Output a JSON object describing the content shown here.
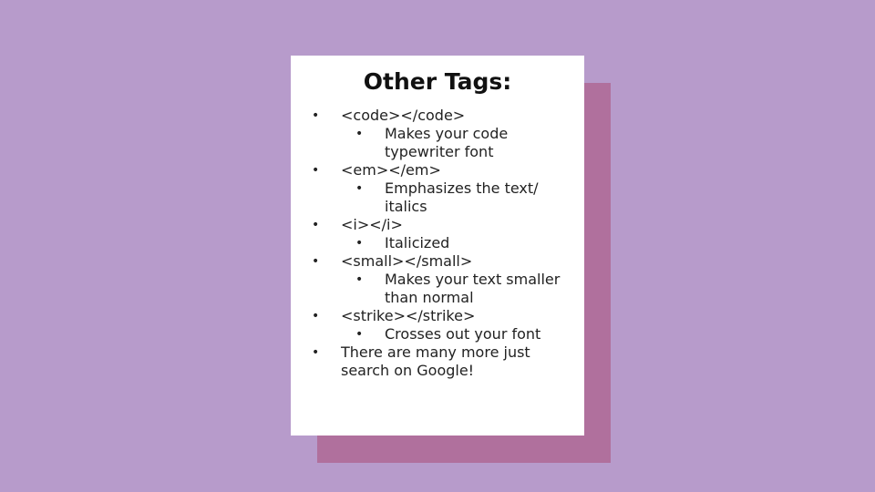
{
  "slide": {
    "title": "Other Tags:",
    "items": [
      {
        "text": [
          "<code></code>"
        ],
        "sub": [
          {
            "text": [
              "Makes your code",
              "typewriter font"
            ]
          }
        ]
      },
      {
        "text": [
          "<em></em>"
        ],
        "sub": [
          {
            "text": [
              "Emphasizes the text/",
              "italics"
            ]
          }
        ]
      },
      {
        "text": [
          "<i></i>"
        ],
        "sub": [
          {
            "text": [
              "Italicized"
            ]
          }
        ]
      },
      {
        "text": [
          "<small></small>"
        ],
        "sub": [
          {
            "text": [
              "Makes your text smaller",
              "than normal"
            ]
          }
        ]
      },
      {
        "text": [
          "<strike></strike>"
        ],
        "sub": [
          {
            "text": [
              "Crosses out your font"
            ]
          }
        ]
      },
      {
        "text": [
          "There are many more just",
          "search on Google!"
        ],
        "sub": []
      }
    ],
    "bullet_glyph": "•"
  },
  "colors": {
    "background": "#b79bcb",
    "shadow_panel": "#b0709d",
    "card": "#ffffff",
    "text": "#222222"
  }
}
